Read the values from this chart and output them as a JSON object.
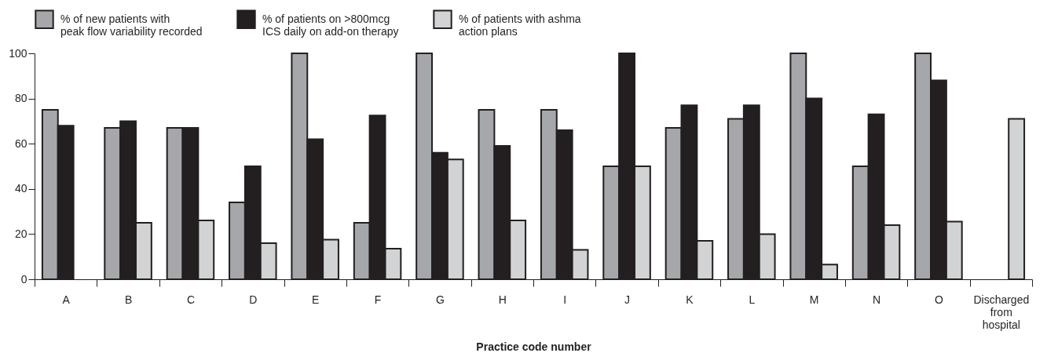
{
  "chart_data": {
    "type": "bar",
    "xlabel": "Practice code number",
    "categories": [
      "A",
      "B",
      "C",
      "D",
      "E",
      "F",
      "G",
      "H",
      "I",
      "J",
      "K",
      "L",
      "M",
      "N",
      "O",
      "Discharged from hospital"
    ],
    "series": [
      {
        "name": "% of new patients with peak flow variability recorded",
        "color": "#a6a7ab",
        "values": [
          75,
          67,
          67,
          34,
          100,
          25,
          100,
          75,
          75,
          50,
          67,
          71,
          100,
          50,
          100,
          null
        ]
      },
      {
        "name": "% of patients on >800mcg ICS daily on add-on therapy",
        "color": "#231f20",
        "values": [
          68,
          70,
          67,
          50,
          62,
          72.5,
          56,
          59,
          66,
          100,
          77,
          77,
          80,
          73,
          88,
          null
        ]
      },
      {
        "name": "% of patients with ashma action plans",
        "color": "#d1d3d4",
        "values": [
          null,
          25,
          26,
          16,
          17.5,
          13.5,
          53,
          26,
          13,
          50,
          17,
          20,
          6.5,
          24,
          25.5,
          71
        ]
      }
    ],
    "ylim": [
      0,
      100
    ],
    "yticks": [
      0,
      20,
      40,
      60,
      80,
      100
    ],
    "grid": false,
    "legend": "top"
  }
}
